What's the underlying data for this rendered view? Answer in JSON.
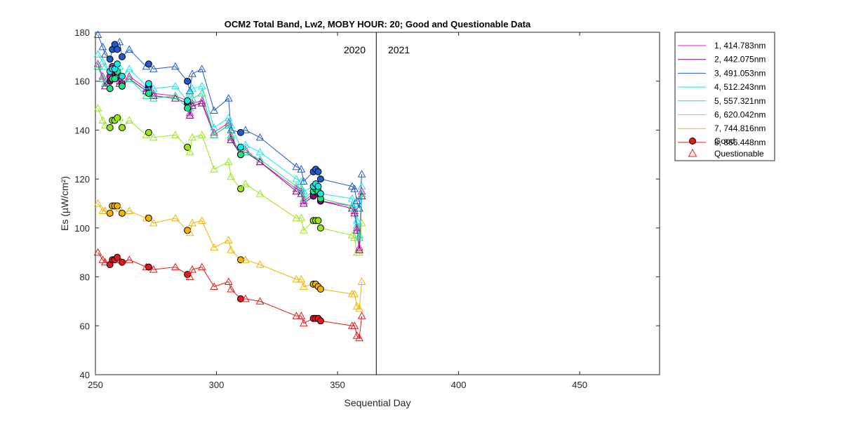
{
  "chart_data": {
    "type": "line",
    "title": "OCM2 Total Band,  Lw2, MOBY HOUR: 20;  Good and Questionable Data",
    "xlabel": "Sequential Day",
    "ylabel": "Es (µW/cm²)",
    "xlim": [
      250,
      483
    ],
    "ylim": [
      40,
      180
    ],
    "xticks": [
      250,
      300,
      350,
      400,
      450
    ],
    "yticks": [
      40,
      60,
      80,
      100,
      120,
      140,
      160,
      180
    ],
    "grid": false,
    "legend_position": "outside-right-top",
    "year_divider_x": 366,
    "year_labels": [
      "2020",
      "2021"
    ],
    "markers": {
      "good": "Good",
      "questionable": "Questionable"
    },
    "x": [
      251,
      253,
      254,
      256,
      257,
      258,
      259,
      260,
      261,
      264,
      271,
      272,
      274,
      283,
      288,
      289,
      290,
      294,
      299,
      305,
      306,
      310,
      312,
      318,
      333,
      335,
      336,
      340,
      341,
      342,
      343,
      356,
      357,
      358,
      359,
      360
    ],
    "quality": [
      "Q",
      "Q",
      "Q",
      "G",
      "G",
      "G",
      "G",
      "Q",
      "G",
      "Q",
      "Q",
      "G",
      "Q",
      "Q",
      "G",
      "Q",
      "Q",
      "Q",
      "Q",
      "Q",
      "Q",
      "G",
      "Q",
      "Q",
      "Q",
      "Q",
      "Q",
      "G",
      "G",
      "G",
      "G",
      "Q",
      "Q",
      "Q",
      "Q",
      "Q"
    ],
    "series": [
      {
        "name": "1, 414.783nm",
        "color": "#e619cc",
        "values": [
          167,
          162,
          159,
          162,
          166,
          164,
          163,
          160,
          159,
          162,
          157,
          158,
          155,
          154,
          152,
          147,
          151,
          152,
          139,
          143,
          137,
          130,
          132,
          127,
          116,
          115,
          111,
          114,
          116,
          115,
          111,
          109,
          107,
          100,
          92,
          115
        ]
      },
      {
        "name": "2, 442.075nm",
        "color": "#7a0f7a",
        "values": [
          166,
          161,
          158,
          160,
          165,
          163,
          162,
          159,
          158,
          161,
          156,
          157,
          154,
          153,
          151,
          146,
          150,
          151,
          138,
          142,
          136,
          130,
          131,
          127,
          115,
          114,
          110,
          113,
          115,
          114,
          111,
          108,
          106,
          99,
          91,
          113
        ]
      },
      {
        "name": "3, 491.053nm",
        "color": "#1f5ad1",
        "values": [
          179,
          174,
          171,
          169,
          173,
          175,
          173,
          176,
          170,
          173,
          166,
          167,
          165,
          166,
          160,
          156,
          163,
          165,
          148,
          153,
          140,
          139,
          140,
          137,
          125,
          124,
          119,
          123,
          124,
          123,
          120,
          117,
          116,
          111,
          108,
          122
        ]
      },
      {
        "name": "4, 512.243nm",
        "color": "#19e6e6",
        "values": [
          171,
          168,
          166,
          164,
          165,
          165,
          167,
          166,
          162,
          165,
          158,
          159,
          157,
          158,
          152,
          155,
          157,
          158,
          141,
          145,
          142,
          133,
          134,
          131,
          120,
          119,
          115,
          117,
          118,
          117,
          114,
          112,
          110,
          103,
          97,
          117
        ]
      },
      {
        "name": "5, 557.321nm",
        "color": "#19e680",
        "values": [
          166,
          161,
          159,
          157,
          161,
          161,
          164,
          163,
          158,
          161,
          154,
          155,
          153,
          154,
          149,
          149,
          153,
          155,
          138,
          142,
          138,
          130,
          131,
          128,
          117,
          116,
          112,
          115,
          116,
          115,
          112,
          109,
          108,
          101,
          96,
          114
        ]
      },
      {
        "name": "6, 620.042nm",
        "color": "#99e619",
        "values": [
          149,
          144,
          142,
          141,
          144,
          144,
          145,
          145,
          141,
          144,
          138,
          139,
          137,
          138,
          133,
          131,
          137,
          138,
          124,
          127,
          121,
          116,
          118,
          114,
          104,
          104,
          99,
          103,
          103,
          103,
          100,
          97,
          96,
          90,
          90,
          102
        ]
      },
      {
        "name": "7, 744.816nm",
        "color": "#f2b300",
        "values": [
          110,
          107,
          107,
          106,
          109,
          109,
          109,
          108,
          106,
          107,
          104,
          104,
          102,
          104,
          99,
          98,
          102,
          103,
          92,
          95,
          91,
          87,
          87,
          85,
          79,
          79,
          76,
          77,
          77,
          76,
          75,
          73,
          73,
          68,
          67,
          78
        ]
      },
      {
        "name": "8, 866.448nm",
        "color": "#e61919",
        "values": [
          90,
          87,
          86,
          85,
          87,
          87,
          88,
          87,
          86,
          87,
          84,
          84,
          83,
          84,
          81,
          80,
          83,
          84,
          76,
          78,
          75,
          71,
          71,
          70,
          64,
          64,
          61,
          63,
          63,
          63,
          62,
          60,
          60,
          56,
          55,
          64
        ]
      }
    ]
  }
}
